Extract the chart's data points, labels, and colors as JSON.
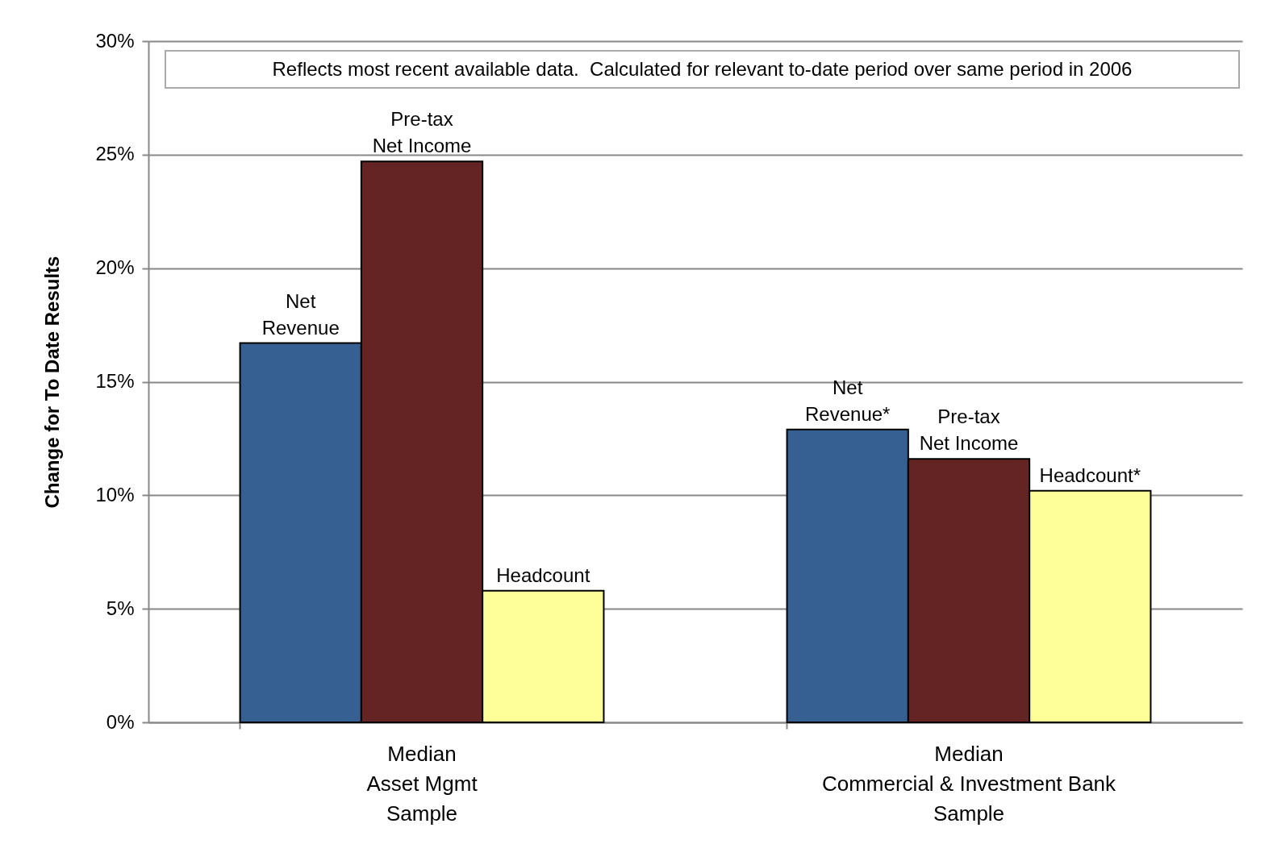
{
  "chart_data": {
    "type": "bar",
    "ylabel": "Change for To Date Results",
    "categories": [
      "Median\nAsset Mgmt\nSample",
      "Median\nCommercial & Investment Bank\nSample"
    ],
    "series": [
      {
        "color": "#366092",
        "values": [
          16.7,
          12.9
        ]
      },
      {
        "color": "#632423",
        "values": [
          24.7,
          11.6
        ]
      },
      {
        "color": "#ffff99",
        "values": [
          5.8,
          10.2
        ]
      }
    ],
    "ylim": [
      0,
      30
    ],
    "yticks": [
      {
        "value": 0,
        "label": "0%"
      },
      {
        "value": 5,
        "label": "5%"
      },
      {
        "value": 10,
        "label": "10%"
      },
      {
        "value": 15,
        "label": "15%"
      },
      {
        "value": 20,
        "label": "20%"
      },
      {
        "value": 25,
        "label": "25%"
      },
      {
        "value": 30,
        "label": "30%"
      }
    ],
    "grid": "y",
    "legend": false,
    "annotations": [
      "Reflects most recent available data.  Calculated for relevant to-date period over same period in 2006",
      "Net\nRevenue",
      "Pre-tax\nNet Income",
      "Headcount",
      "Net\nRevenue*",
      "Pre-tax\nNet Income",
      "Headcount*"
    ]
  }
}
